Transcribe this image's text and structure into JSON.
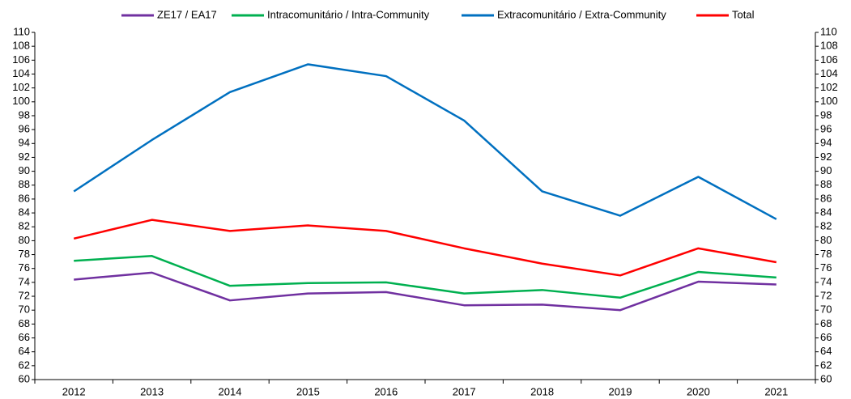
{
  "chart_data": {
    "type": "line",
    "categories": [
      "2012",
      "2013",
      "2014",
      "2015",
      "2016",
      "2017",
      "2018",
      "2019",
      "2020",
      "2021"
    ],
    "series": [
      {
        "name": "ZE17 / EA17",
        "color": "#7030a0",
        "values": [
          74.4,
          75.4,
          71.4,
          72.4,
          72.6,
          70.7,
          70.8,
          70.0,
          74.1,
          73.7
        ]
      },
      {
        "name": "Intracomunitário / Intra-Community",
        "color": "#00b050",
        "values": [
          77.1,
          77.8,
          73.5,
          73.9,
          74.0,
          72.4,
          72.9,
          71.8,
          75.5,
          74.7
        ]
      },
      {
        "name": "Extracomunitário / Extra-Community",
        "color": "#0070c0",
        "values": [
          87.1,
          94.5,
          101.4,
          105.4,
          103.7,
          97.3,
          87.1,
          83.6,
          89.2,
          83.1
        ]
      },
      {
        "name": "Total",
        "color": "#ff0000",
        "values": [
          80.3,
          83.0,
          81.4,
          82.2,
          81.4,
          78.9,
          76.7,
          75.0,
          78.9,
          76.9
        ]
      }
    ],
    "ylim": [
      60,
      110
    ],
    "yticks": [
      60,
      62,
      64,
      66,
      68,
      70,
      72,
      74,
      76,
      78,
      80,
      82,
      84,
      86,
      88,
      90,
      92,
      94,
      96,
      98,
      100,
      102,
      104,
      106,
      108,
      110
    ],
    "y2lim": [
      60,
      110
    ],
    "y2ticks": [
      60,
      62,
      64,
      66,
      68,
      70,
      72,
      74,
      76,
      78,
      80,
      82,
      84,
      86,
      88,
      90,
      92,
      94,
      96,
      98,
      100,
      102,
      104,
      106,
      108,
      110
    ],
    "legend": "top"
  }
}
